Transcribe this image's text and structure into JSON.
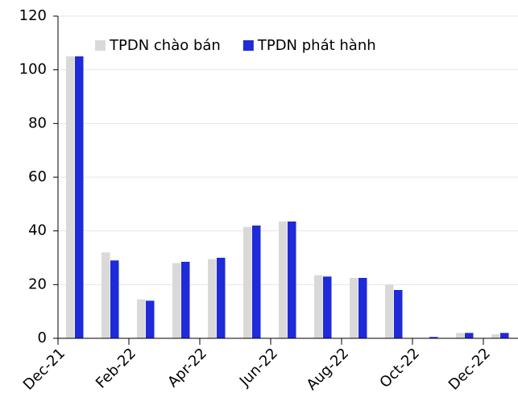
{
  "chart_data": {
    "type": "bar",
    "categories": [
      "Dec-21",
      null,
      "Feb-22",
      null,
      "Apr-22",
      null,
      "Jun-22",
      null,
      "Aug-22",
      null,
      "Oct-22",
      null,
      "Dec-22"
    ],
    "series": [
      {
        "name": "TPDN chào bán",
        "color": "#d9d9d9",
        "values": [
          105,
          32,
          14.5,
          28,
          29.5,
          41.5,
          43.5,
          23.5,
          22.5,
          20,
          0,
          2,
          1.5
        ]
      },
      {
        "name": "TPDN phát hành",
        "color": "#1f2ad8",
        "values": [
          105,
          29,
          14,
          28.5,
          30,
          42,
          43.5,
          23,
          22.5,
          18,
          0.5,
          2,
          2
        ]
      }
    ],
    "ylim": [
      0,
      120
    ],
    "yticks": [
      0,
      20,
      40,
      60,
      80,
      100,
      120
    ],
    "grid": true,
    "legend": "top-left"
  }
}
